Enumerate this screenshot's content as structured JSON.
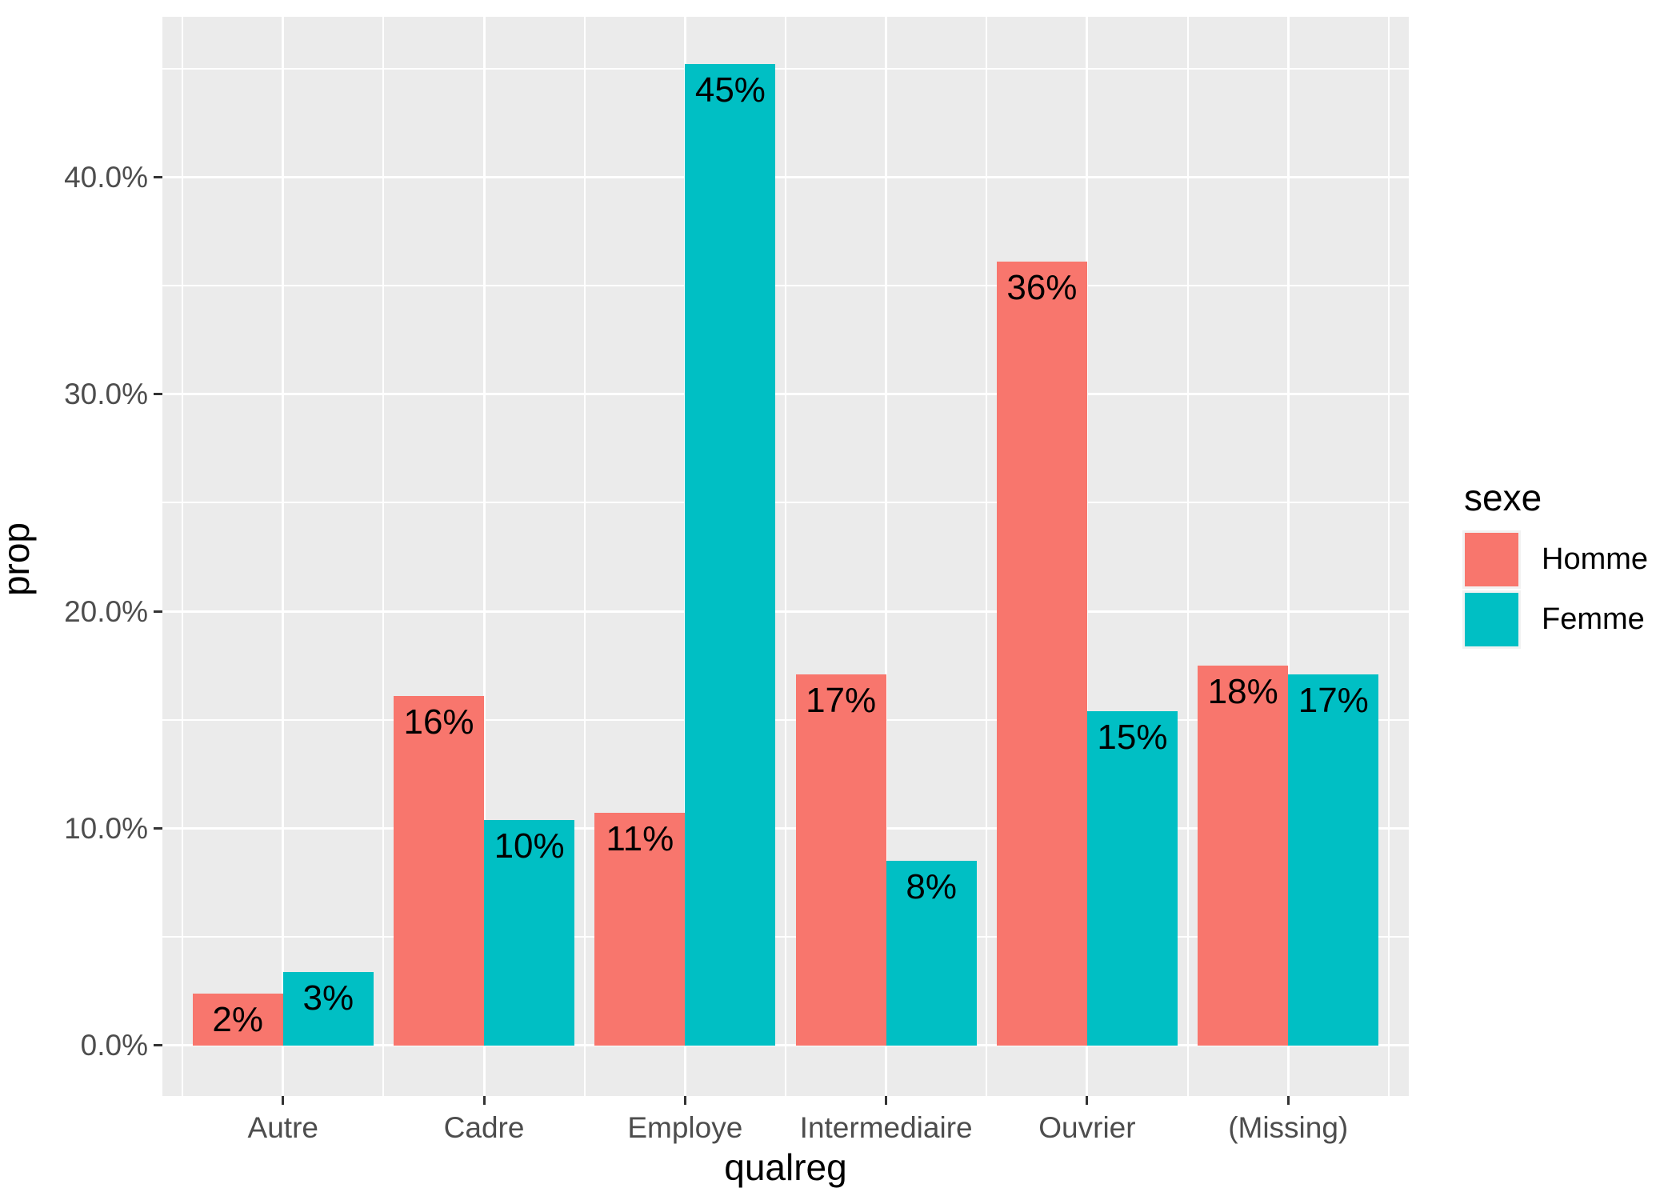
{
  "chart_data": {
    "type": "bar",
    "title": "",
    "xlabel": "qualreg",
    "ylabel": "prop",
    "legend_title": "sexe",
    "legend_position": "right",
    "grid": true,
    "categories": [
      "Autre",
      "Cadre",
      "Employe",
      "Intermediaire",
      "Ouvrier",
      "(Missing)"
    ],
    "series": [
      {
        "name": "Homme",
        "color": "#F8766D",
        "values": [
          2.4,
          16.1,
          10.7,
          17.1,
          36.1,
          17.5
        ],
        "labels": [
          "2%",
          "16%",
          "11%",
          "17%",
          "36%",
          "18%"
        ]
      },
      {
        "name": "Femme",
        "color": "#00BFC4",
        "values": [
          3.4,
          10.4,
          45.2,
          8.5,
          15.4,
          17.1
        ],
        "labels": [
          "3%",
          "10%",
          "45%",
          "8%",
          "15%",
          "17%"
        ]
      }
    ],
    "y_ticks": [
      {
        "value": 0,
        "label": "0.0%"
      },
      {
        "value": 10,
        "label": "10.0%"
      },
      {
        "value": 20,
        "label": "20.0%"
      },
      {
        "value": 30,
        "label": "30.0%"
      },
      {
        "value": 40,
        "label": "40.0%"
      }
    ],
    "y_minor": [
      5,
      15,
      25,
      35,
      45
    ],
    "ylim": [
      -2.33,
      47.38
    ]
  },
  "colors": {
    "panel_background": "#EBEBEB",
    "gridline": "#FFFFFF",
    "tick_mark": "#333333",
    "axis_text": "#4D4D4D",
    "label_text": "#000000",
    "legend_key_background": "#F2F2F2"
  }
}
